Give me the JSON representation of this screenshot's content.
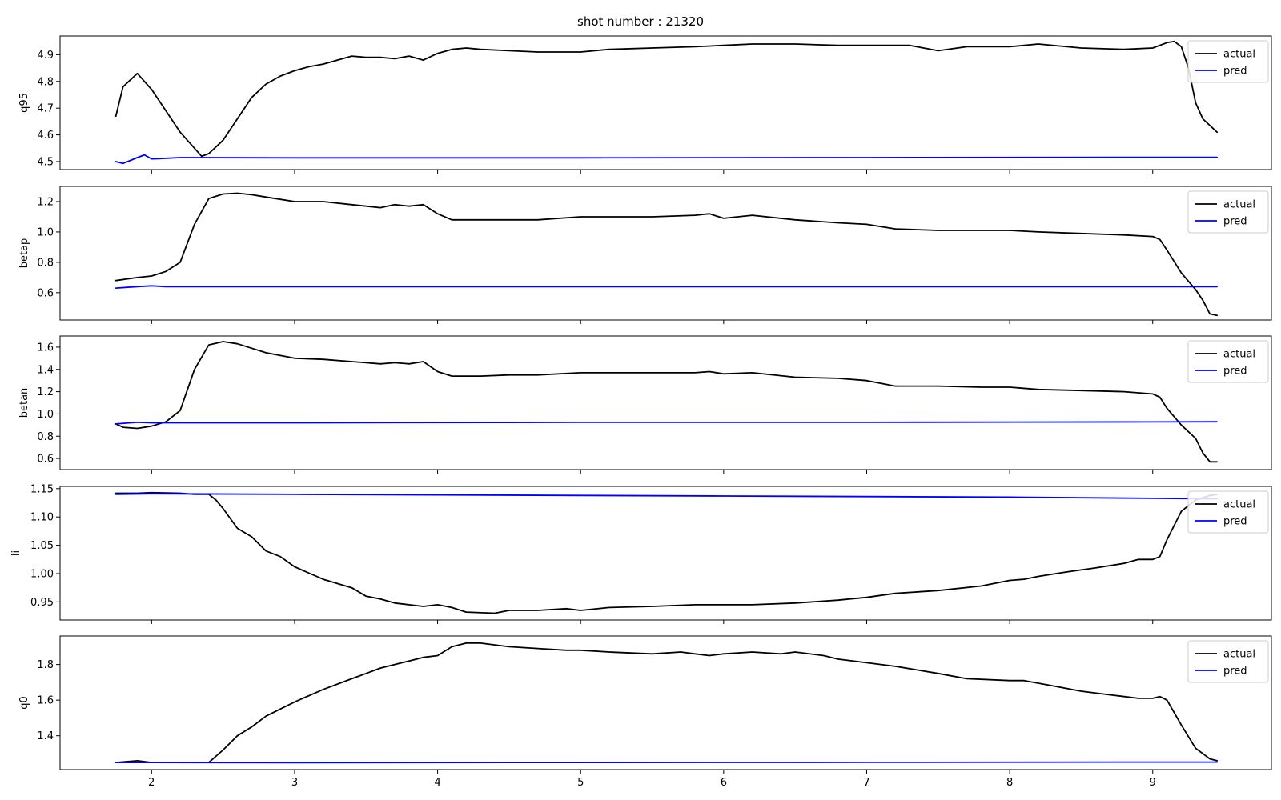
{
  "figure": {
    "title": "shot number : 21320",
    "x_tick_labels": [
      "2",
      "3",
      "4",
      "5",
      "6",
      "7",
      "8",
      "9"
    ]
  },
  "colors": {
    "actual": "#000000",
    "pred": "#0000ff"
  },
  "chart_data": [
    {
      "type": "line",
      "ylabel": "q95",
      "xlim": [
        1.36,
        9.83
      ],
      "ylim": [
        4.47,
        4.97
      ],
      "yticks": [
        4.5,
        4.6,
        4.7,
        4.8,
        4.9
      ],
      "ytick_labels": [
        "4.5",
        "4.6",
        "4.7",
        "4.8",
        "4.9"
      ],
      "legend": "top-right",
      "series": [
        {
          "name": "actual",
          "color": "#000000",
          "x": [
            1.75,
            1.8,
            1.9,
            2.0,
            2.1,
            2.2,
            2.3,
            2.35,
            2.4,
            2.5,
            2.6,
            2.7,
            2.8,
            2.9,
            3.0,
            3.1,
            3.2,
            3.3,
            3.4,
            3.5,
            3.6,
            3.7,
            3.8,
            3.9,
            4.0,
            4.1,
            4.2,
            4.3,
            4.5,
            4.7,
            5.0,
            5.2,
            5.5,
            5.8,
            6.0,
            6.2,
            6.5,
            6.8,
            7.0,
            7.3,
            7.5,
            7.7,
            8.0,
            8.2,
            8.5,
            8.8,
            9.0,
            9.1,
            9.15,
            9.2,
            9.25,
            9.3,
            9.35,
            9.4,
            9.45
          ],
          "y": [
            4.67,
            4.78,
            4.83,
            4.77,
            4.69,
            4.61,
            4.55,
            4.52,
            4.53,
            4.58,
            4.66,
            4.74,
            4.79,
            4.82,
            4.84,
            4.855,
            4.865,
            4.88,
            4.895,
            4.89,
            4.89,
            4.885,
            4.895,
            4.88,
            4.905,
            4.92,
            4.925,
            4.92,
            4.915,
            4.91,
            4.91,
            4.92,
            4.925,
            4.93,
            4.935,
            4.94,
            4.94,
            4.935,
            4.935,
            4.935,
            4.915,
            4.93,
            4.93,
            4.94,
            4.925,
            4.92,
            4.925,
            4.945,
            4.95,
            4.93,
            4.85,
            4.72,
            4.66,
            4.635,
            4.61
          ]
        },
        {
          "name": "pred",
          "color": "#0000ff",
          "x": [
            1.75,
            1.8,
            1.9,
            1.95,
            2.0,
            2.05,
            2.2,
            3.0,
            5.0,
            7.0,
            9.0,
            9.45
          ],
          "y": [
            4.5,
            4.493,
            4.515,
            4.525,
            4.51,
            4.511,
            4.515,
            4.514,
            4.514,
            4.515,
            4.516,
            4.516
          ]
        }
      ]
    },
    {
      "type": "line",
      "ylabel": "betap",
      "xlim": [
        1.36,
        9.83
      ],
      "ylim": [
        0.42,
        1.3
      ],
      "yticks": [
        0.6,
        0.8,
        1.0,
        1.2
      ],
      "ytick_labels": [
        "0.6",
        "0.8",
        "1.0",
        "1.2"
      ],
      "legend": "top-right",
      "series": [
        {
          "name": "actual",
          "color": "#000000",
          "x": [
            1.75,
            1.9,
            2.0,
            2.1,
            2.2,
            2.3,
            2.4,
            2.5,
            2.6,
            2.7,
            2.8,
            3.0,
            3.2,
            3.4,
            3.5,
            3.6,
            3.7,
            3.8,
            3.9,
            4.0,
            4.1,
            4.3,
            4.5,
            4.7,
            5.0,
            5.2,
            5.5,
            5.8,
            5.9,
            6.0,
            6.2,
            6.5,
            6.8,
            7.0,
            7.2,
            7.5,
            7.8,
            8.0,
            8.2,
            8.5,
            8.8,
            9.0,
            9.05,
            9.1,
            9.2,
            9.3,
            9.35,
            9.4,
            9.45
          ],
          "y": [
            0.68,
            0.7,
            0.71,
            0.74,
            0.8,
            1.05,
            1.22,
            1.25,
            1.255,
            1.245,
            1.23,
            1.2,
            1.2,
            1.18,
            1.17,
            1.16,
            1.18,
            1.17,
            1.18,
            1.12,
            1.08,
            1.08,
            1.08,
            1.08,
            1.1,
            1.1,
            1.1,
            1.11,
            1.12,
            1.09,
            1.11,
            1.08,
            1.06,
            1.05,
            1.02,
            1.01,
            1.01,
            1.01,
            1.0,
            0.99,
            0.98,
            0.97,
            0.95,
            0.88,
            0.73,
            0.62,
            0.55,
            0.46,
            0.45
          ]
        },
        {
          "name": "pred",
          "color": "#0000ff",
          "x": [
            1.75,
            1.9,
            2.0,
            2.1,
            3.0,
            5.0,
            7.0,
            9.0,
            9.45
          ],
          "y": [
            0.63,
            0.64,
            0.645,
            0.64,
            0.64,
            0.64,
            0.64,
            0.64,
            0.64
          ]
        }
      ]
    },
    {
      "type": "line",
      "ylabel": "betan",
      "xlim": [
        1.36,
        9.83
      ],
      "ylim": [
        0.5,
        1.7
      ],
      "yticks": [
        0.6,
        0.8,
        1.0,
        1.2,
        1.4,
        1.6
      ],
      "ytick_labels": [
        "0.6",
        "0.8",
        "1.0",
        "1.2",
        "1.4",
        "1.6"
      ],
      "legend": "top-right",
      "series": [
        {
          "name": "actual",
          "color": "#000000",
          "x": [
            1.75,
            1.8,
            1.9,
            2.0,
            2.1,
            2.2,
            2.3,
            2.4,
            2.5,
            2.6,
            2.7,
            2.8,
            3.0,
            3.2,
            3.4,
            3.5,
            3.6,
            3.7,
            3.8,
            3.9,
            4.0,
            4.1,
            4.3,
            4.5,
            4.7,
            5.0,
            5.2,
            5.5,
            5.8,
            5.9,
            6.0,
            6.2,
            6.5,
            6.8,
            7.0,
            7.2,
            7.5,
            7.8,
            8.0,
            8.2,
            8.5,
            8.8,
            9.0,
            9.05,
            9.1,
            9.2,
            9.3,
            9.35,
            9.4,
            9.45
          ],
          "y": [
            0.91,
            0.88,
            0.87,
            0.89,
            0.93,
            1.03,
            1.4,
            1.62,
            1.65,
            1.63,
            1.59,
            1.55,
            1.5,
            1.49,
            1.47,
            1.46,
            1.45,
            1.46,
            1.45,
            1.47,
            1.38,
            1.34,
            1.34,
            1.35,
            1.35,
            1.37,
            1.37,
            1.37,
            1.37,
            1.38,
            1.36,
            1.37,
            1.33,
            1.32,
            1.3,
            1.25,
            1.25,
            1.24,
            1.24,
            1.22,
            1.21,
            1.2,
            1.18,
            1.15,
            1.05,
            0.9,
            0.78,
            0.65,
            0.57,
            0.57
          ]
        },
        {
          "name": "pred",
          "color": "#0000ff",
          "x": [
            1.75,
            1.9,
            2.0,
            2.1,
            3.0,
            5.0,
            7.0,
            9.0,
            9.45
          ],
          "y": [
            0.91,
            0.925,
            0.92,
            0.92,
            0.92,
            0.925,
            0.925,
            0.928,
            0.93
          ]
        }
      ]
    },
    {
      "type": "line",
      "ylabel": "li",
      "xlim": [
        1.36,
        9.83
      ],
      "ylim": [
        0.918,
        1.154
      ],
      "yticks": [
        0.95,
        1.0,
        1.05,
        1.1,
        1.15
      ],
      "ytick_labels": [
        "0.95",
        "1.00",
        "1.05",
        "1.10",
        "1.15"
      ],
      "legend": "top-right",
      "series": [
        {
          "name": "actual",
          "color": "#000000",
          "x": [
            1.75,
            1.9,
            2.0,
            2.2,
            2.3,
            2.4,
            2.45,
            2.5,
            2.6,
            2.7,
            2.8,
            2.9,
            3.0,
            3.2,
            3.4,
            3.5,
            3.6,
            3.7,
            3.8,
            3.9,
            4.0,
            4.1,
            4.2,
            4.4,
            4.5,
            4.7,
            4.9,
            5.0,
            5.2,
            5.5,
            5.8,
            6.0,
            6.2,
            6.5,
            6.8,
            7.0,
            7.2,
            7.5,
            7.8,
            8.0,
            8.1,
            8.2,
            8.4,
            8.6,
            8.8,
            8.9,
            9.0,
            9.05,
            9.1,
            9.2,
            9.3,
            9.4,
            9.45
          ],
          "y": [
            1.142,
            1.142,
            1.143,
            1.142,
            1.14,
            1.14,
            1.13,
            1.115,
            1.08,
            1.065,
            1.04,
            1.03,
            1.012,
            0.99,
            0.975,
            0.96,
            0.955,
            0.948,
            0.945,
            0.942,
            0.945,
            0.94,
            0.932,
            0.93,
            0.935,
            0.935,
            0.938,
            0.935,
            0.94,
            0.942,
            0.945,
            0.945,
            0.945,
            0.948,
            0.953,
            0.958,
            0.965,
            0.97,
            0.978,
            0.988,
            0.99,
            0.995,
            1.003,
            1.01,
            1.018,
            1.025,
            1.025,
            1.03,
            1.06,
            1.11,
            1.13,
            1.138,
            1.14
          ]
        },
        {
          "name": "pred",
          "color": "#0000ff",
          "x": [
            1.75,
            2.0,
            3.0,
            4.0,
            5.0,
            6.0,
            7.0,
            8.0,
            9.0,
            9.45
          ],
          "y": [
            1.14,
            1.141,
            1.14,
            1.139,
            1.138,
            1.137,
            1.136,
            1.135,
            1.133,
            1.132
          ]
        }
      ]
    },
    {
      "type": "line",
      "ylabel": "q0",
      "xlim": [
        1.36,
        9.83
      ],
      "ylim": [
        1.21,
        1.96
      ],
      "yticks": [
        1.4,
        1.6,
        1.8
      ],
      "ytick_labels": [
        "1.4",
        "1.6",
        "1.8"
      ],
      "legend": "top-right",
      "series": [
        {
          "name": "actual",
          "color": "#000000",
          "x": [
            1.75,
            1.9,
            2.0,
            2.2,
            2.4,
            2.5,
            2.6,
            2.7,
            2.8,
            3.0,
            3.2,
            3.4,
            3.5,
            3.6,
            3.7,
            3.8,
            3.9,
            4.0,
            4.1,
            4.2,
            4.3,
            4.4,
            4.5,
            4.7,
            4.9,
            5.0,
            5.2,
            5.5,
            5.7,
            5.8,
            5.9,
            6.0,
            6.2,
            6.4,
            6.5,
            6.7,
            6.8,
            7.0,
            7.2,
            7.5,
            7.7,
            8.0,
            8.1,
            8.3,
            8.5,
            8.7,
            8.9,
            9.0,
            9.05,
            9.1,
            9.2,
            9.3,
            9.4,
            9.45
          ],
          "y": [
            1.25,
            1.26,
            1.25,
            1.25,
            1.25,
            1.32,
            1.4,
            1.45,
            1.51,
            1.59,
            1.66,
            1.72,
            1.75,
            1.78,
            1.8,
            1.82,
            1.84,
            1.85,
            1.9,
            1.92,
            1.92,
            1.91,
            1.9,
            1.89,
            1.88,
            1.88,
            1.87,
            1.86,
            1.87,
            1.86,
            1.85,
            1.86,
            1.87,
            1.86,
            1.87,
            1.85,
            1.83,
            1.81,
            1.79,
            1.75,
            1.72,
            1.71,
            1.71,
            1.68,
            1.65,
            1.63,
            1.61,
            1.61,
            1.62,
            1.6,
            1.46,
            1.33,
            1.27,
            1.26
          ]
        },
        {
          "name": "pred",
          "color": "#0000ff",
          "x": [
            1.75,
            2.0,
            3.0,
            5.0,
            7.0,
            9.0,
            9.45
          ],
          "y": [
            1.25,
            1.25,
            1.249,
            1.25,
            1.251,
            1.252,
            1.252
          ]
        }
      ]
    }
  ]
}
